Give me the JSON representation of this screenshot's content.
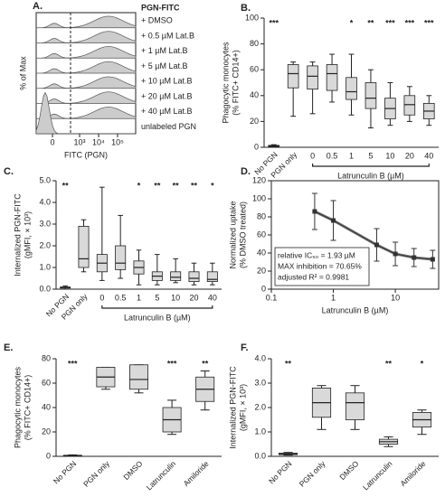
{
  "chart_data": [
    {
      "type": "flow",
      "panel": "A.",
      "title": "PGN-FITC",
      "labels": [
        "+ DMSO",
        "+ 0.5 µM Lat.B",
        "+ 1 µM Lat.B",
        "+ 5 µM Lat.B",
        "+ 10 µM Lat.B",
        "+ 20 µM Lat.B",
        "+ 40 µM Lat.B",
        "unlabeled PGN"
      ],
      "ylabel": "% of Max",
      "xlabel": "FITC (PGN)",
      "xticks": [
        0,
        {
          "value": 1000,
          "label": "10³"
        },
        {
          "value": 10000,
          "label": "10⁴"
        },
        {
          "value": 100000,
          "label": "10⁵"
        }
      ],
      "color": "#cccccc"
    },
    {
      "type": "box",
      "panel": "B.",
      "ylabel": [
        "Phagocytic monocytes",
        "(% FITC+ CD14+)"
      ],
      "categories": [
        "No PGN",
        "PGN only",
        "0",
        "0.5",
        "1",
        "5",
        "10",
        "20",
        "40"
      ],
      "group_label": "Latrunculin B (µM)",
      "min": [
        0,
        24,
        26,
        35,
        25,
        15,
        17,
        20,
        17
      ],
      "q1": [
        0.5,
        46,
        45,
        44,
        37,
        30,
        22,
        25,
        22
      ],
      "median": [
        1,
        57,
        55,
        57,
        43,
        38,
        30,
        33,
        28
      ],
      "q3": [
        1.5,
        64,
        63,
        64,
        54,
        50,
        38,
        40,
        34
      ],
      "max": [
        2,
        66,
        66,
        72,
        72,
        60,
        50,
        47,
        40
      ],
      "annotations": [
        "***",
        null,
        null,
        null,
        "*",
        "**",
        "***",
        "***",
        "***"
      ],
      "ylim": [
        0,
        100
      ],
      "yticks": [
        0,
        20,
        40,
        60,
        80,
        100
      ],
      "color": "#d9d9d9"
    },
    {
      "type": "box",
      "panel": "C.",
      "ylabel": [
        "Internalized PGN-FITC",
        "(gMFI, × 10³)"
      ],
      "categories": [
        "No PGN",
        "PGN only",
        "0",
        "0.5",
        "1",
        "5",
        "10",
        "20",
        "40"
      ],
      "group_label": "Latrunculin B (µM)",
      "min": [
        0,
        0.8,
        0.4,
        0.5,
        0.2,
        0.2,
        0.3,
        0.2,
        0.2
      ],
      "q1": [
        0.05,
        1.0,
        0.8,
        0.9,
        0.7,
        0.4,
        0.4,
        0.35,
        0.35
      ],
      "median": [
        0.08,
        1.4,
        1.2,
        1.2,
        1.0,
        0.6,
        0.55,
        0.5,
        0.45
      ],
      "q3": [
        0.1,
        2.9,
        1.6,
        2.0,
        1.3,
        0.8,
        0.8,
        0.8,
        0.8
      ],
      "max": [
        0.15,
        3.2,
        4.7,
        3.4,
        1.8,
        1.6,
        1.4,
        1.2,
        1.2
      ],
      "annotations": [
        "**",
        null,
        null,
        null,
        "*",
        "**",
        "**",
        "**",
        "*"
      ],
      "ylim": [
        0,
        5
      ],
      "yticks": [
        {
          "value": 0,
          "label": "0.0"
        },
        {
          "value": 1,
          "label": "1.0"
        },
        {
          "value": 2,
          "label": "2.0"
        },
        {
          "value": 3,
          "label": "3.0"
        },
        {
          "value": 4,
          "label": "4.0"
        },
        {
          "value": 5,
          "label": "5.0"
        }
      ],
      "color": "#d9d9d9"
    },
    {
      "type": "line",
      "panel": "D.",
      "ylabel": [
        "Normalized uptake",
        "(% DMSO treated)"
      ],
      "xlabel": "Latrunculin B (µM)",
      "x": [
        0.5,
        1,
        5,
        10,
        20,
        40
      ],
      "values": [
        86,
        76,
        49,
        39,
        35,
        33
      ],
      "errors": [
        20,
        22,
        18,
        13,
        10,
        10
      ],
      "xscale": "log",
      "xlim": [
        0.1,
        50
      ],
      "xticks": [
        0.1,
        1,
        10
      ],
      "ylim": [
        0,
        120
      ],
      "yticks": [
        0,
        20,
        40,
        60,
        80,
        100,
        120
      ],
      "annotations": [
        "relative IC₅₀ = 1.93 µM",
        "MAX inhibition = 70.65%",
        "adjusted R² = 0.9981"
      ],
      "color": "#333333"
    },
    {
      "type": "box",
      "panel": "E.",
      "ylabel": [
        "Phagocytic monocytes",
        "(% FITC+ CD14+)"
      ],
      "categories": [
        "No PGN",
        "PGN only",
        "DMSO",
        "Latrunculin",
        "Amiloride"
      ],
      "min": [
        0,
        55,
        52,
        18,
        38
      ],
      "q1": [
        0.3,
        57,
        55,
        20,
        45
      ],
      "median": [
        0.6,
        65,
        63,
        30,
        55
      ],
      "q3": [
        0.9,
        73,
        75,
        40,
        65
      ],
      "max": [
        1.2,
        73,
        75,
        46,
        70
      ],
      "annotations": [
        "***",
        null,
        null,
        "***",
        "**"
      ],
      "ylim": [
        0,
        80
      ],
      "yticks": [
        0,
        20,
        40,
        60,
        80
      ],
      "color": "#d9d9d9"
    },
    {
      "type": "box",
      "panel": "F.",
      "ylabel": [
        "Internalized PGN-FITC",
        "(gMFI, × 10³)"
      ],
      "categories": [
        "No PGN",
        "PGN only",
        "DMSO",
        "Latrunculin",
        "Amiloride"
      ],
      "min": [
        0.05,
        1.1,
        1.1,
        0.4,
        0.9
      ],
      "q1": [
        0.07,
        1.6,
        1.5,
        0.5,
        1.2
      ],
      "median": [
        0.1,
        2.2,
        2.2,
        0.6,
        1.5
      ],
      "q3": [
        0.13,
        2.8,
        2.6,
        0.7,
        1.8
      ],
      "max": [
        0.16,
        2.9,
        2.9,
        0.8,
        1.9
      ],
      "annotations": [
        "**",
        null,
        null,
        "**",
        "*"
      ],
      "ylim": [
        0,
        4
      ],
      "yticks": [
        {
          "value": 0,
          "label": "0.0"
        },
        {
          "value": 1,
          "label": "1.0"
        },
        {
          "value": 2,
          "label": "2.0"
        },
        {
          "value": 3,
          "label": "3.0"
        },
        {
          "value": 4,
          "label": "4.0"
        }
      ],
      "color": "#d9d9d9"
    }
  ]
}
